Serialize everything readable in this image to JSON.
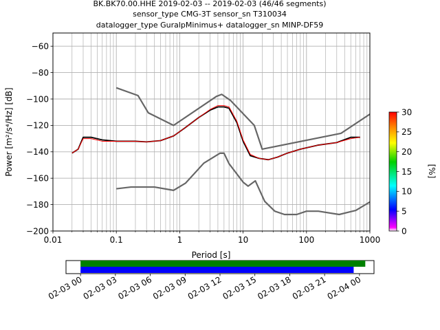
{
  "title_lines": [
    "BK.BK70.00.HHE   2019-02-03 -- 2019-02-03  (46/46 segments)",
    "sensor_type CMG-3T sensor_sn T310034",
    "datalogger_type GuralpMinimus+ datalogger_sn MINP-DF59"
  ],
  "colors": {
    "model_line": "#666666",
    "mean_line": "#000000",
    "mode_line": "#ff0000",
    "green_bar": "#008000",
    "blue_bar": "#0000ff"
  },
  "chart_data": [
    {
      "type": "heatmap",
      "subtype": "probabilistic-psd",
      "xlabel": "Period [s]",
      "ylabel": "Power [m²/s⁴/Hz] [dB]",
      "xscale": "log",
      "xlim": [
        0.01,
        1000
      ],
      "ylim": [
        -200,
        -50
      ],
      "grid": true,
      "x_ticks": [
        0.01,
        0.1,
        1,
        10,
        100,
        1000
      ],
      "x_tick_labels": [
        "0.01",
        "0.1",
        "1",
        "10",
        "100",
        "1000"
      ],
      "y_ticks": [
        -200,
        -180,
        -160,
        -140,
        -120,
        -100,
        -80,
        -60
      ],
      "y_tick_labels": [
        "−200",
        "−180",
        "−160",
        "−140",
        "−120",
        "−100",
        "−80",
        "−60"
      ],
      "colorbar": {
        "label": "[%]",
        "range": [
          0,
          30
        ],
        "ticks": [
          0,
          5,
          10,
          15,
          20,
          25,
          30
        ],
        "tick_labels": [
          "0",
          "5",
          "10",
          "15",
          "20",
          "25",
          "30"
        ]
      },
      "series": [
        {
          "role": "new-high-noise-model",
          "points": [
            [
              0.1,
              -91.5
            ],
            [
              0.22,
              -97.4
            ],
            [
              0.32,
              -110.5
            ],
            [
              0.8,
              -120
            ],
            [
              3.8,
              -98
            ],
            [
              4.6,
              -96.5
            ],
            [
              6.3,
              -101
            ],
            [
              15,
              -120
            ],
            [
              20,
              -138
            ],
            [
              350,
              -126
            ],
            [
              1000,
              -111.5
            ]
          ]
        },
        {
          "role": "new-low-noise-model",
          "points": [
            [
              0.1,
              -168
            ],
            [
              0.17,
              -166.7
            ],
            [
              0.4,
              -166.7
            ],
            [
              0.8,
              -169.2
            ],
            [
              1.24,
              -163.7
            ],
            [
              2.4,
              -148.6
            ],
            [
              4.3,
              -141.1
            ],
            [
              5,
              -141.1
            ],
            [
              6,
              -149
            ],
            [
              10,
              -163
            ],
            [
              12,
              -166
            ],
            [
              15.6,
              -162
            ],
            [
              21.9,
              -177.5
            ],
            [
              31.6,
              -185
            ],
            [
              45,
              -187.5
            ],
            [
              70,
              -187.5
            ],
            [
              100,
              -185
            ],
            [
              154,
              -185
            ],
            [
              328,
              -187.5
            ],
            [
              600,
              -184.4
            ],
            [
              1000,
              -178
            ]
          ]
        },
        {
          "role": "mean",
          "points": [
            [
              0.02,
              -141
            ],
            [
              0.025,
              -138
            ],
            [
              0.03,
              -129
            ],
            [
              0.04,
              -129
            ],
            [
              0.06,
              -131
            ],
            [
              0.1,
              -132
            ],
            [
              0.2,
              -132
            ],
            [
              0.3,
              -132.5
            ],
            [
              0.5,
              -131.5
            ],
            [
              0.8,
              -128
            ],
            [
              1.2,
              -122
            ],
            [
              2,
              -114
            ],
            [
              3,
              -108.5
            ],
            [
              4,
              -106
            ],
            [
              5,
              -106
            ],
            [
              6,
              -107
            ],
            [
              8,
              -118
            ],
            [
              10,
              -132
            ],
            [
              13,
              -143
            ],
            [
              18,
              -145
            ],
            [
              25,
              -146
            ],
            [
              35,
              -144
            ],
            [
              50,
              -141
            ],
            [
              80,
              -138
            ],
            [
              150,
              -135
            ],
            [
              300,
              -133
            ],
            [
              500,
              -129
            ],
            [
              700,
              -129
            ]
          ]
        },
        {
          "role": "mode",
          "points": [
            [
              0.02,
              -141
            ],
            [
              0.025,
              -138
            ],
            [
              0.03,
              -130
            ],
            [
              0.04,
              -130
            ],
            [
              0.06,
              -132
            ],
            [
              0.1,
              -132
            ],
            [
              0.2,
              -132
            ],
            [
              0.3,
              -132.5
            ],
            [
              0.5,
              -131.5
            ],
            [
              0.8,
              -128
            ],
            [
              1.2,
              -122
            ],
            [
              2,
              -114
            ],
            [
              3,
              -108
            ],
            [
              4,
              -105
            ],
            [
              5,
              -105
            ],
            [
              6,
              -106
            ],
            [
              8,
              -117
            ],
            [
              10,
              -131
            ],
            [
              13,
              -142
            ],
            [
              18,
              -145
            ],
            [
              25,
              -146
            ],
            [
              35,
              -144
            ],
            [
              50,
              -141
            ],
            [
              80,
              -138
            ],
            [
              150,
              -135
            ],
            [
              300,
              -133
            ],
            [
              500,
              -130
            ],
            [
              700,
              -129
            ]
          ]
        }
      ]
    },
    {
      "type": "timeline",
      "subtype": "data-coverage",
      "xlim": [
        "2019-02-02 22:45",
        "2019-02-04 01:15"
      ],
      "x_ticks": [
        "2019-02-03 00:00",
        "2019-02-03 03:00",
        "2019-02-03 06:00",
        "2019-02-03 09:00",
        "2019-02-03 12:00",
        "2019-02-03 15:00",
        "2019-02-03 18:00",
        "2019-02-03 21:00",
        "2019-02-04 00:00"
      ],
      "x_tick_labels": [
        "02-03 00",
        "02-03 03",
        "02-03 06",
        "02-03 09",
        "02-03 12",
        "02-03 15",
        "02-03 18",
        "02-03 21",
        "02-04 00"
      ],
      "bars": [
        {
          "role": "data-available",
          "start": "2019-02-03 00:00",
          "end": "2019-02-04 00:30"
        },
        {
          "role": "psd-segments-used",
          "start": "2019-02-03 00:00",
          "end": "2019-02-03 23:30"
        }
      ]
    }
  ]
}
